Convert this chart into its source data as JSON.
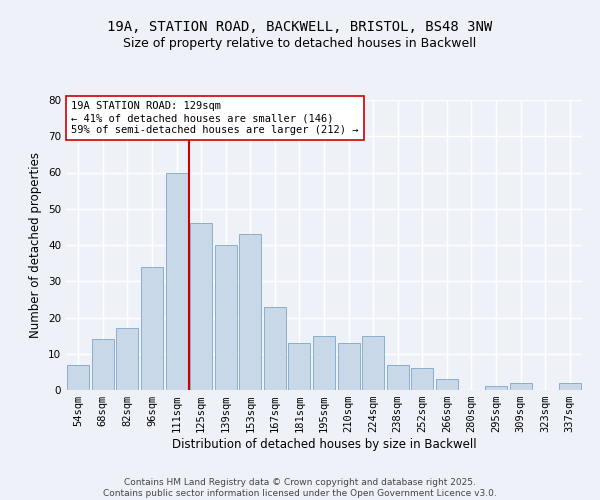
{
  "title_line1": "19A, STATION ROAD, BACKWELL, BRISTOL, BS48 3NW",
  "title_line2": "Size of property relative to detached houses in Backwell",
  "xlabel": "Distribution of detached houses by size in Backwell",
  "ylabel": "Number of detached properties",
  "categories": [
    "54sqm",
    "68sqm",
    "82sqm",
    "96sqm",
    "111sqm",
    "125sqm",
    "139sqm",
    "153sqm",
    "167sqm",
    "181sqm",
    "195sqm",
    "210sqm",
    "224sqm",
    "238sqm",
    "252sqm",
    "266sqm",
    "280sqm",
    "295sqm",
    "309sqm",
    "323sqm",
    "337sqm"
  ],
  "values": [
    7,
    14,
    17,
    34,
    60,
    46,
    40,
    43,
    23,
    13,
    15,
    13,
    15,
    7,
    6,
    3,
    0,
    1,
    2,
    0,
    2
  ],
  "bar_color": "#c8d8e8",
  "bar_edge_color": "#7ba7c7",
  "background_color": "#eef2f8",
  "grid_color": "#ffffff",
  "vline_color": "#cc0000",
  "vline_x_index": 4.5,
  "annotation_text": "19A STATION ROAD: 129sqm\n← 41% of detached houses are smaller (146)\n59% of semi-detached houses are larger (212) →",
  "annotation_box_color": "#ffffff",
  "annotation_box_edge": "#cc0000",
  "ylim": [
    0,
    80
  ],
  "yticks": [
    0,
    10,
    20,
    30,
    40,
    50,
    60,
    70,
    80
  ],
  "footer_text": "Contains HM Land Registry data © Crown copyright and database right 2025.\nContains public sector information licensed under the Open Government Licence v3.0.",
  "title_fontsize": 10,
  "subtitle_fontsize": 9,
  "axis_label_fontsize": 8.5,
  "tick_fontsize": 7.5,
  "annotation_fontsize": 7.5,
  "footer_fontsize": 6.5
}
